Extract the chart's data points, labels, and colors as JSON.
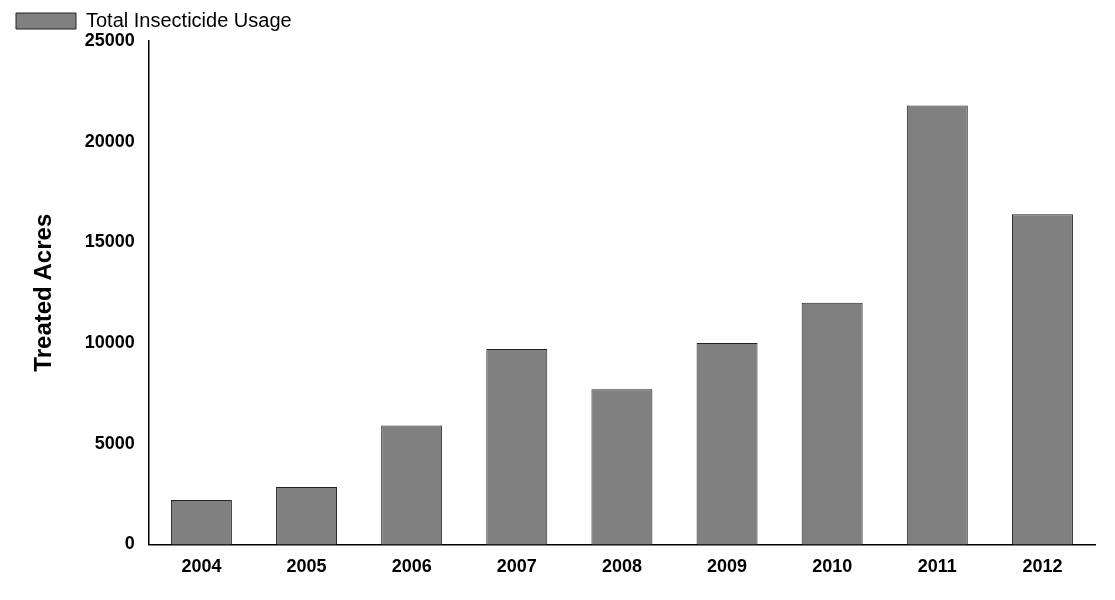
{
  "chart_data": {
    "type": "bar",
    "ylabel": "Treated Acres",
    "categories": [
      "2004",
      "2005",
      "2006",
      "2007",
      "2008",
      "2009",
      "2010",
      "2011",
      "2012"
    ],
    "series": [
      {
        "name": "Total Insecticide Usage",
        "color": "#808080",
        "values": [
          2200,
          2850,
          5900,
          9700,
          7700,
          10000,
          12000,
          21800,
          16400
        ]
      }
    ],
    "ylim": [
      0,
      25000
    ],
    "yticks": [
      0,
      5000,
      10000,
      15000,
      20000,
      25000
    ],
    "grid": false,
    "legend": "top left"
  }
}
